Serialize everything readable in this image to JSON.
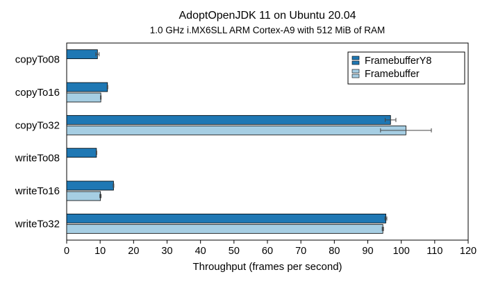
{
  "chart_data": {
    "type": "bar",
    "orientation": "horizontal",
    "title": "AdoptOpenJDK 11 on Ubuntu 20.04",
    "subtitle": "1.0 GHz i.MX6SLL ARM Cortex-A9 with 512 MiB of RAM",
    "xlabel": "Throughput (frames per second)",
    "ylabel": "",
    "xlim": [
      0,
      120
    ],
    "xticks": [
      0,
      10,
      20,
      30,
      40,
      50,
      60,
      70,
      80,
      90,
      100,
      110,
      120
    ],
    "grid": false,
    "legend_position": "top-right",
    "categories": [
      "copyTo08",
      "copyTo16",
      "copyTo32",
      "writeTo08",
      "writeTo16",
      "writeTo32"
    ],
    "series": [
      {
        "name": "FramebufferY8",
        "color": "#1f78b4",
        "values": [
          9.2,
          12.2,
          96.8,
          8.9,
          14.0,
          95.4
        ],
        "errors": [
          0.5,
          0.1,
          1.6,
          0.1,
          0.1,
          0.3
        ]
      },
      {
        "name": "Framebuffer",
        "color": "#a6cee3",
        "values": [
          null,
          10.2,
          101.4,
          null,
          10.1,
          94.5
        ],
        "errors": [
          null,
          0.1,
          7.6,
          null,
          0.2,
          0.2
        ]
      }
    ]
  }
}
